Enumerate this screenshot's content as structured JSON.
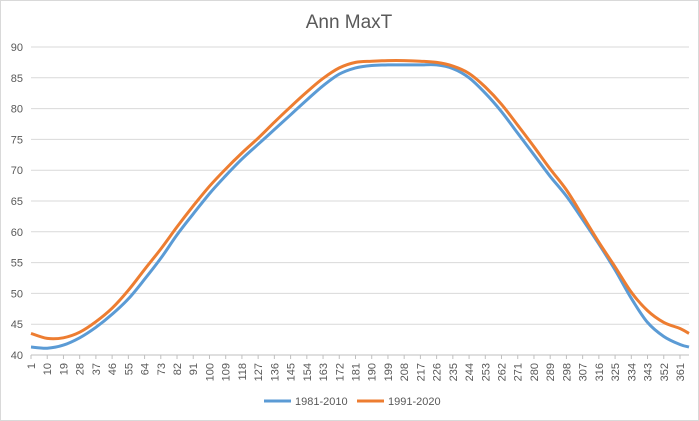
{
  "chart_data": {
    "type": "line",
    "title": "Ann MaxT",
    "xlabel": "",
    "ylabel": "",
    "ylim": [
      40,
      90
    ],
    "yticks": [
      40,
      45,
      50,
      55,
      60,
      65,
      70,
      75,
      80,
      85,
      90
    ],
    "xlim": [
      1,
      366
    ],
    "xtick_labels": [
      "1",
      "10",
      "19",
      "28",
      "37",
      "46",
      "55",
      "64",
      "73",
      "82",
      "91",
      "100",
      "109",
      "118",
      "127",
      "136",
      "145",
      "154",
      "163",
      "172",
      "181",
      "190",
      "199",
      "208",
      "217",
      "226",
      "235",
      "244",
      "253",
      "262",
      "271",
      "280",
      "289",
      "298",
      "307",
      "316",
      "325",
      "334",
      "343",
      "352",
      "361"
    ],
    "grid": true,
    "legend_position": "bottom",
    "colors": {
      "1981-2010": "#5b9bd5",
      "1991-2020": "#ed7d31"
    },
    "series": [
      {
        "name": "1981-2010",
        "x": [
          1,
          10,
          19,
          28,
          37,
          46,
          55,
          64,
          73,
          82,
          91,
          100,
          109,
          118,
          127,
          136,
          145,
          154,
          163,
          172,
          181,
          190,
          199,
          208,
          217,
          226,
          235,
          244,
          253,
          262,
          271,
          280,
          289,
          298,
          307,
          316,
          325,
          334,
          343,
          352,
          361,
          366
        ],
        "values": [
          41.3,
          41.1,
          41.6,
          42.8,
          44.5,
          46.6,
          49.1,
          52.3,
          55.7,
          59.5,
          62.9,
          66.2,
          69.1,
          71.8,
          74.2,
          76.6,
          79.0,
          81.4,
          83.7,
          85.6,
          86.6,
          87.0,
          87.1,
          87.1,
          87.1,
          87.1,
          86.5,
          85.0,
          82.5,
          79.5,
          76.0,
          72.5,
          69.0,
          65.8,
          62.0,
          58.0,
          53.8,
          49.2,
          45.3,
          43.0,
          41.7,
          41.3
        ]
      },
      {
        "name": "1991-2020",
        "x": [
          1,
          10,
          19,
          28,
          37,
          46,
          55,
          64,
          73,
          82,
          91,
          100,
          109,
          118,
          127,
          136,
          145,
          154,
          163,
          172,
          181,
          190,
          199,
          208,
          217,
          226,
          235,
          244,
          253,
          262,
          271,
          280,
          289,
          298,
          307,
          316,
          325,
          334,
          343,
          352,
          361,
          366
        ],
        "values": [
          43.5,
          42.7,
          42.8,
          43.7,
          45.4,
          47.6,
          50.5,
          53.9,
          57.2,
          60.8,
          64.2,
          67.4,
          70.2,
          72.8,
          75.2,
          77.8,
          80.3,
          82.7,
          84.9,
          86.6,
          87.5,
          87.7,
          87.8,
          87.8,
          87.7,
          87.5,
          86.9,
          85.7,
          83.5,
          80.7,
          77.3,
          73.8,
          70.2,
          66.8,
          62.6,
          58.3,
          54.3,
          50.2,
          47.2,
          45.3,
          44.3,
          43.5
        ]
      }
    ]
  }
}
